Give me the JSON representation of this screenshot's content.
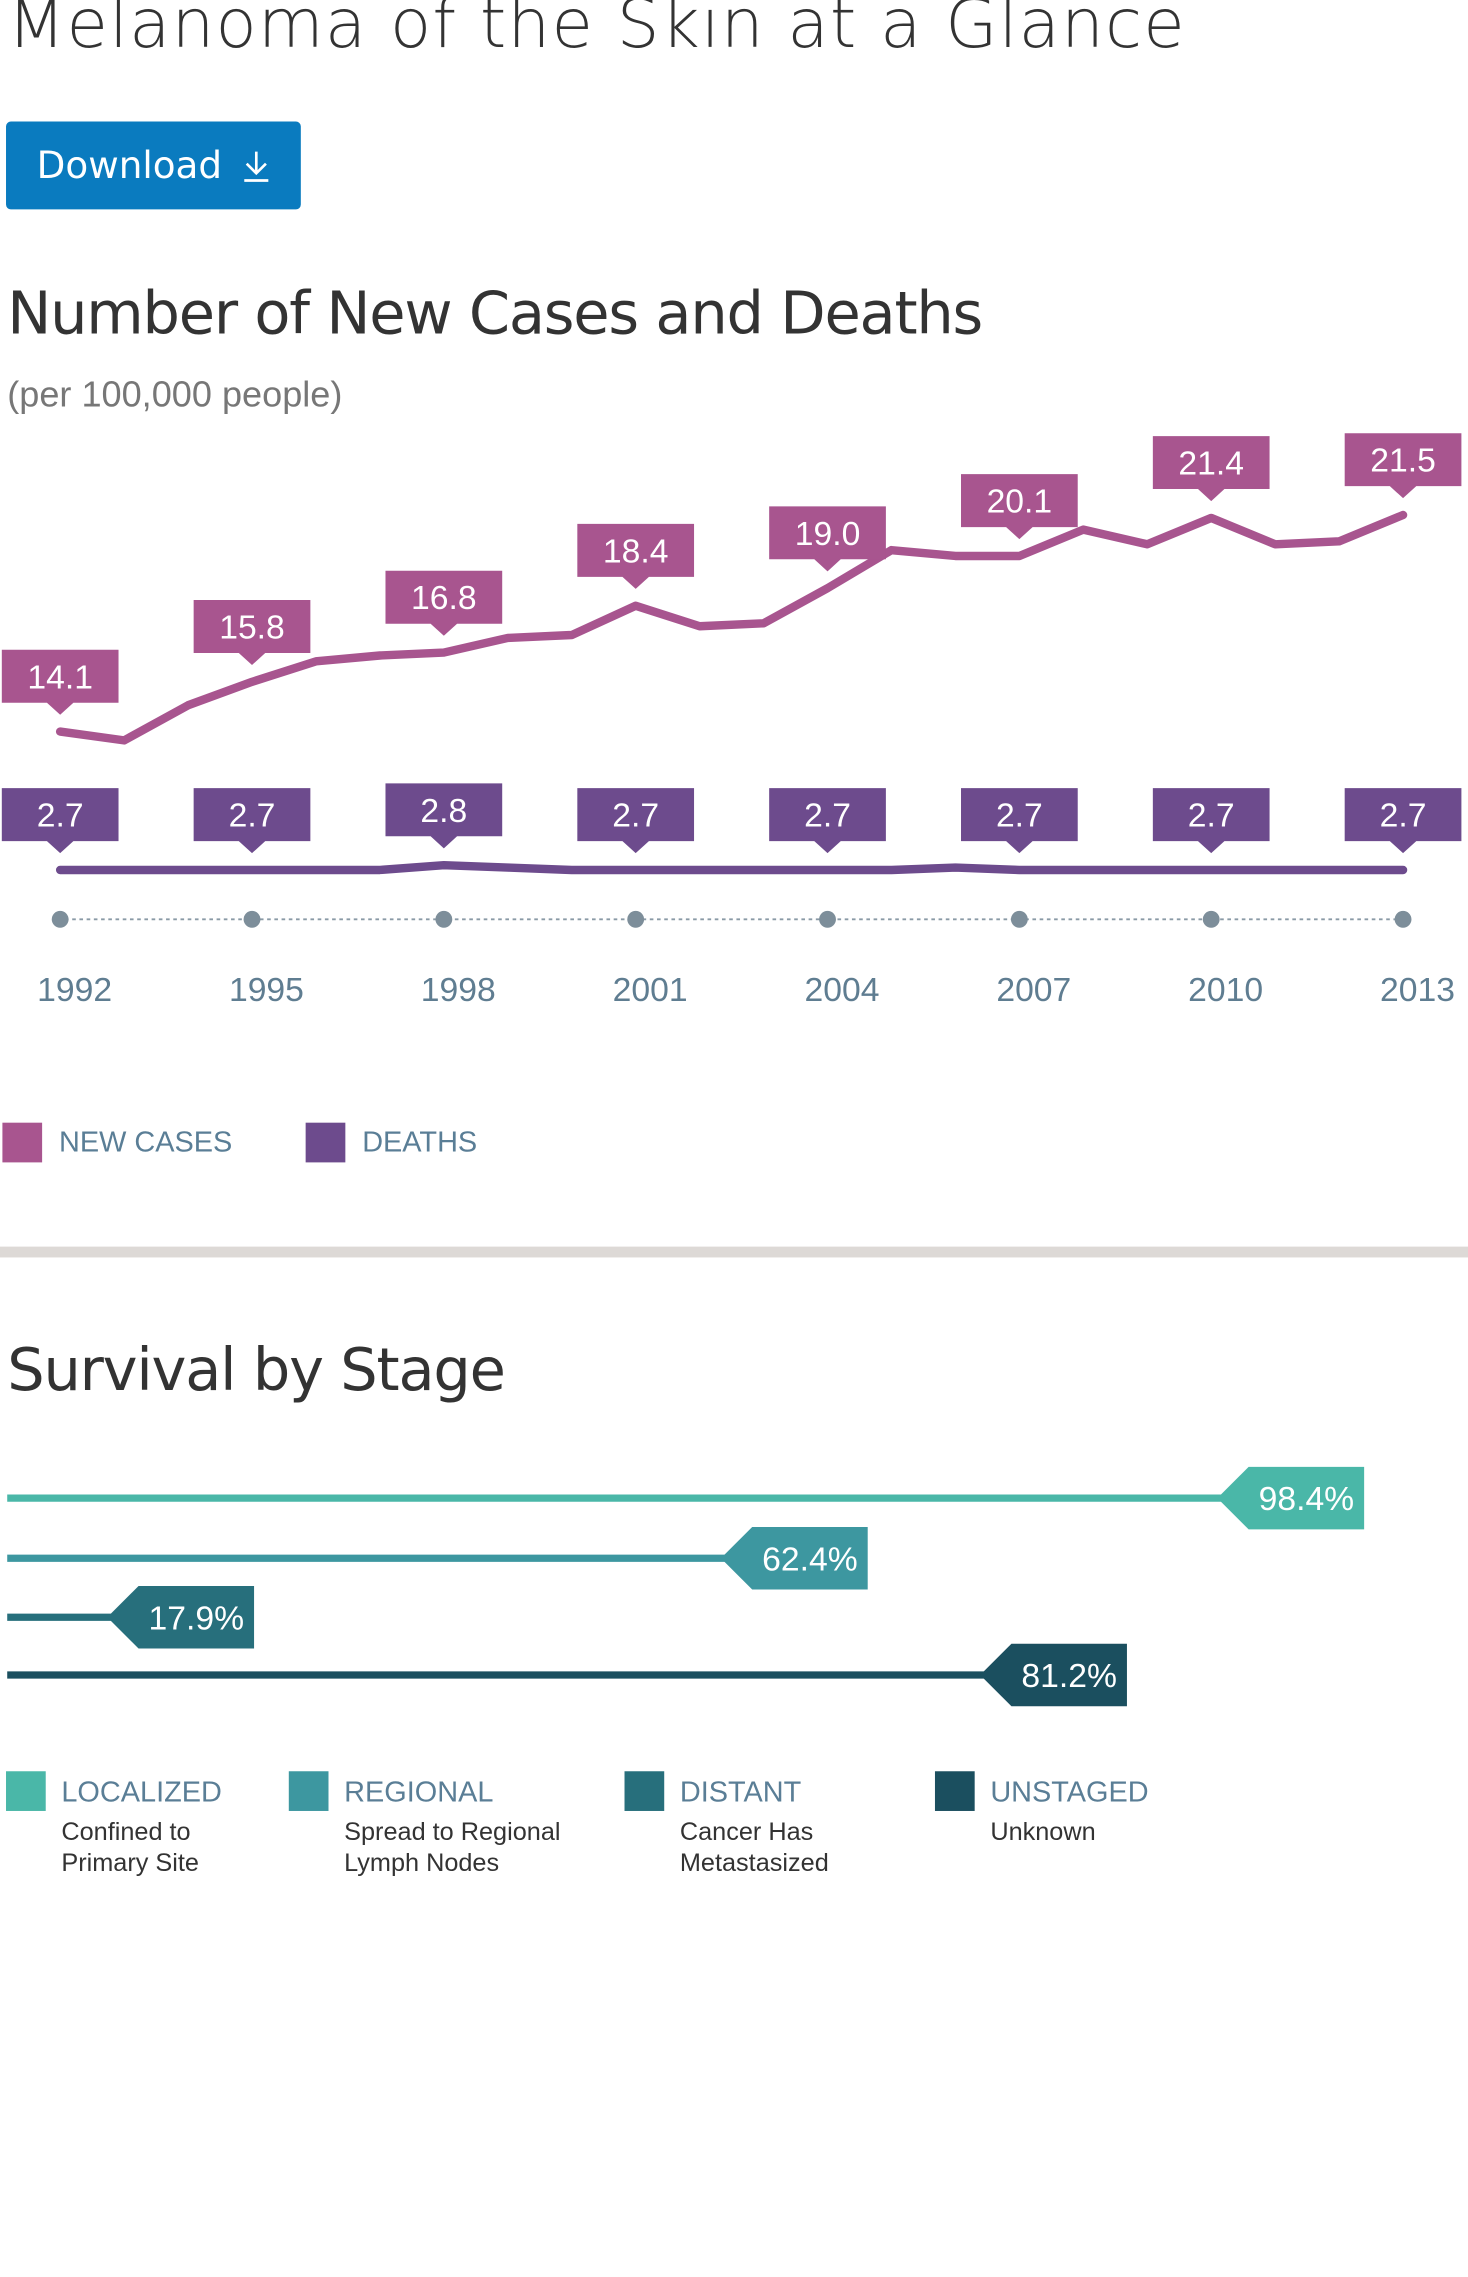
{
  "page": {
    "title": "Melanoma of the Skin at a Glance",
    "download_label": "Download"
  },
  "cases_section": {
    "title": "Number of New Cases and Deaths",
    "subtitle": "(per 100,000 people)"
  },
  "survival_section": {
    "title": "Survival by Stage"
  },
  "colors": {
    "new_cases": "#a8558f",
    "deaths": "#6d4b8d",
    "localized": "#4ab7a8",
    "regional": "#3d97a0",
    "distant": "#276f7c",
    "unstaged": "#1b4f5f",
    "download": "#0a7bbf"
  },
  "chart_data": [
    {
      "type": "line",
      "title": "Number of New Cases and Deaths",
      "subtitle": "(per 100,000 people)",
      "x_ticks": [
        "1992",
        "1995",
        "1998",
        "2001",
        "2004",
        "2007",
        "2010",
        "2013"
      ],
      "series": [
        {
          "name": "NEW CASES",
          "x": [
            1992,
            1993,
            1994,
            1995,
            1996,
            1997,
            1998,
            1999,
            2000,
            2001,
            2002,
            2003,
            2004,
            2005,
            2006,
            2007,
            2008,
            2009,
            2010,
            2011,
            2012,
            2013
          ],
          "values": [
            14.1,
            13.8,
            15.0,
            15.8,
            16.5,
            16.7,
            16.8,
            17.3,
            17.4,
            18.4,
            17.7,
            17.8,
            19.0,
            20.3,
            20.1,
            20.1,
            21.0,
            20.5,
            21.4,
            20.5,
            20.6,
            21.5
          ],
          "labels": {
            "1992": "14.1",
            "1995": "15.8",
            "1998": "16.8",
            "2001": "18.4",
            "2004": "19.0",
            "2007": "20.1",
            "2010": "21.4",
            "2013": "21.5"
          }
        },
        {
          "name": "DEATHS",
          "x": [
            1992,
            1993,
            1994,
            1995,
            1996,
            1997,
            1998,
            1999,
            2000,
            2001,
            2002,
            2003,
            2004,
            2005,
            2006,
            2007,
            2008,
            2009,
            2010,
            2011,
            2012,
            2013
          ],
          "values": [
            2.7,
            2.7,
            2.7,
            2.7,
            2.7,
            2.7,
            2.8,
            2.75,
            2.7,
            2.7,
            2.7,
            2.7,
            2.7,
            2.7,
            2.75,
            2.7,
            2.7,
            2.7,
            2.7,
            2.7,
            2.7,
            2.7
          ],
          "labels": {
            "1992": "2.7",
            "1995": "2.7",
            "1998": "2.8",
            "2001": "2.7",
            "2004": "2.7",
            "2007": "2.7",
            "2010": "2.7",
            "2013": "2.7"
          }
        }
      ],
      "legend": [
        "NEW CASES",
        "DEATHS"
      ]
    },
    {
      "type": "bar",
      "title": "Survival by Stage",
      "categories": [
        "LOCALIZED",
        "REGIONAL",
        "DISTANT",
        "UNSTAGED"
      ],
      "values": [
        98.4,
        62.4,
        17.9,
        81.2
      ],
      "value_labels": [
        "98.4%",
        "62.4%",
        "17.9%",
        "81.2%"
      ],
      "descriptions": [
        "Confined to Primary Site",
        "Spread to Regional Lymph Nodes",
        "Cancer Has Metastasized",
        "Unknown"
      ]
    }
  ]
}
